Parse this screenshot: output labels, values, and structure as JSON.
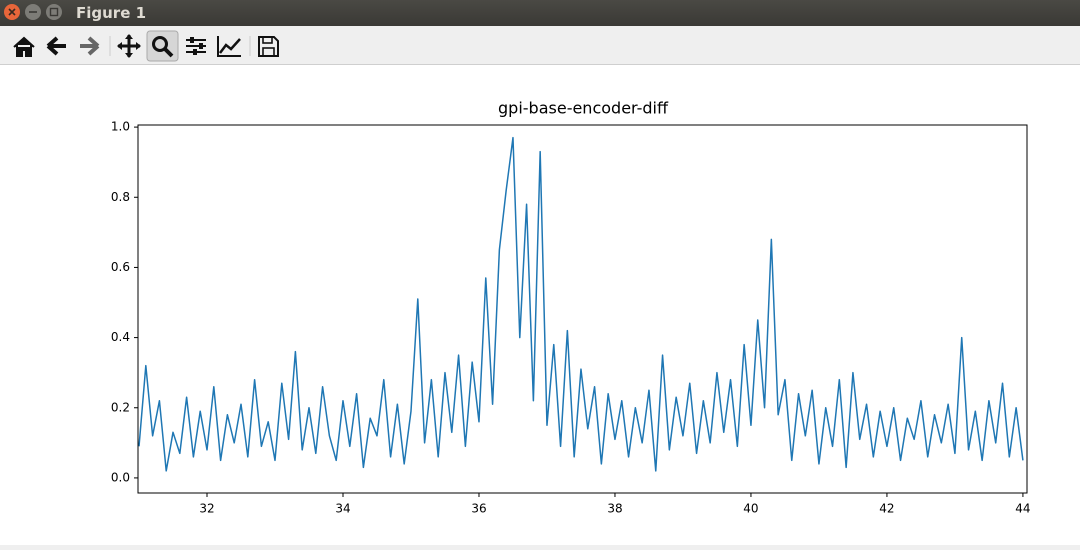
{
  "window": {
    "title": "Figure 1"
  },
  "chart_data": {
    "type": "line",
    "title": "gpi-base-encoder-diff",
    "color": "#1f77b4",
    "x": [
      31.0,
      31.1,
      31.2,
      31.3,
      31.4,
      31.5,
      31.6,
      31.7,
      31.8,
      31.9,
      32.0,
      32.1,
      32.2,
      32.3,
      32.4,
      32.5,
      32.6,
      32.7,
      32.8,
      32.9,
      33.0,
      33.1,
      33.2,
      33.3,
      33.4,
      33.5,
      33.6,
      33.7,
      33.8,
      33.9,
      34.0,
      34.1,
      34.2,
      34.3,
      34.4,
      34.5,
      34.6,
      34.7,
      34.8,
      34.9,
      35.0,
      35.1,
      35.2,
      35.3,
      35.4,
      35.5,
      35.6,
      35.7,
      35.8,
      35.9,
      36.0,
      36.1,
      36.2,
      36.3,
      36.4,
      36.5,
      36.6,
      36.7,
      36.8,
      36.9,
      37.0,
      37.1,
      37.2,
      37.3,
      37.4,
      37.5,
      37.6,
      37.7,
      37.8,
      37.9,
      38.0,
      38.1,
      38.2,
      38.3,
      38.4,
      38.5,
      38.6,
      38.7,
      38.8,
      38.9,
      39.0,
      39.1,
      39.2,
      39.3,
      39.4,
      39.5,
      39.6,
      39.7,
      39.8,
      39.9,
      40.0,
      40.1,
      40.2,
      40.3,
      40.4,
      40.5,
      40.6,
      40.7,
      40.8,
      40.9,
      41.0,
      41.1,
      41.2,
      41.3,
      41.4,
      41.5,
      41.6,
      41.7,
      41.8,
      41.9,
      42.0,
      42.1,
      42.2,
      42.3,
      42.4,
      42.5,
      42.6,
      42.7,
      42.8,
      42.9,
      43.0,
      43.1,
      43.2,
      43.3,
      43.4,
      43.5,
      43.6,
      43.7,
      43.8,
      43.9,
      44.0
    ],
    "values": [
      0.09,
      0.32,
      0.12,
      0.22,
      0.02,
      0.13,
      0.07,
      0.23,
      0.06,
      0.19,
      0.08,
      0.26,
      0.05,
      0.18,
      0.1,
      0.21,
      0.06,
      0.28,
      0.09,
      0.16,
      0.05,
      0.27,
      0.11,
      0.36,
      0.08,
      0.2,
      0.07,
      0.26,
      0.12,
      0.05,
      0.22,
      0.09,
      0.24,
      0.03,
      0.17,
      0.12,
      0.28,
      0.06,
      0.21,
      0.04,
      0.19,
      0.51,
      0.1,
      0.28,
      0.06,
      0.3,
      0.13,
      0.35,
      0.09,
      0.33,
      0.16,
      0.57,
      0.21,
      0.65,
      0.82,
      0.97,
      0.4,
      0.78,
      0.22,
      0.93,
      0.15,
      0.38,
      0.09,
      0.42,
      0.06,
      0.31,
      0.14,
      0.26,
      0.04,
      0.24,
      0.11,
      0.22,
      0.06,
      0.2,
      0.1,
      0.25,
      0.02,
      0.35,
      0.08,
      0.23,
      0.12,
      0.27,
      0.07,
      0.22,
      0.1,
      0.3,
      0.13,
      0.28,
      0.09,
      0.38,
      0.15,
      0.45,
      0.2,
      0.68,
      0.18,
      0.28,
      0.05,
      0.24,
      0.12,
      0.25,
      0.04,
      0.2,
      0.09,
      0.28,
      0.03,
      0.3,
      0.11,
      0.21,
      0.06,
      0.19,
      0.09,
      0.2,
      0.05,
      0.17,
      0.11,
      0.22,
      0.06,
      0.18,
      0.1,
      0.21,
      0.07,
      0.4,
      0.08,
      0.19,
      0.05,
      0.22,
      0.1,
      0.27,
      0.06,
      0.2,
      0.05
    ],
    "xlim": [
      30.985,
      44.06
    ],
    "xticks": [
      32,
      34,
      36,
      38,
      40,
      42,
      44
    ],
    "ylim": [
      -0.043,
      1.006
    ],
    "yticks": [
      {
        "value": 0,
        "label": "0.0"
      },
      0.2,
      0.4,
      0.6,
      0.8,
      {
        "value": 1,
        "label": "1.0"
      }
    ],
    "grid": false
  }
}
